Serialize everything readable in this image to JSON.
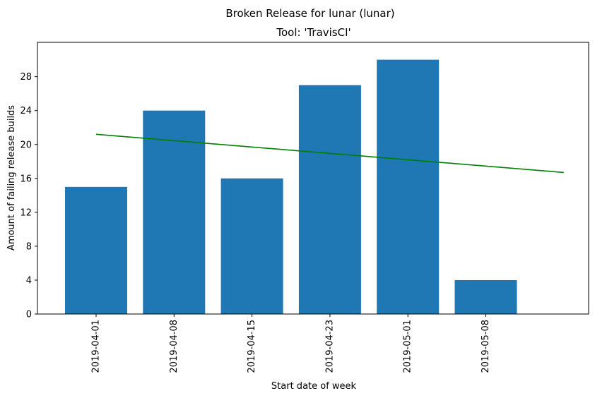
{
  "chart_data": {
    "type": "bar",
    "title": "Broken Release for lunar (lunar)",
    "subtitle": "Tool: 'TravisCI'",
    "xlabel": "Start date of week",
    "ylabel": "Amount of failing release builds",
    "categories": [
      "2019-04-01",
      "2019-04-08",
      "2019-04-15",
      "2019-04-23",
      "2019-05-01",
      "2019-05-08"
    ],
    "values": [
      15,
      24,
      16,
      27,
      30,
      4
    ],
    "ylim": [
      0,
      30
    ],
    "yticks": [
      0,
      4,
      8,
      12,
      16,
      20,
      24,
      28
    ],
    "x_tick_rotation": "vertical",
    "grid": false,
    "bar_color": "#1f77b4",
    "trendline": {
      "color": "#008000",
      "start": 21.2,
      "end": 16.7,
      "extends_one_category_past_last": true
    }
  }
}
